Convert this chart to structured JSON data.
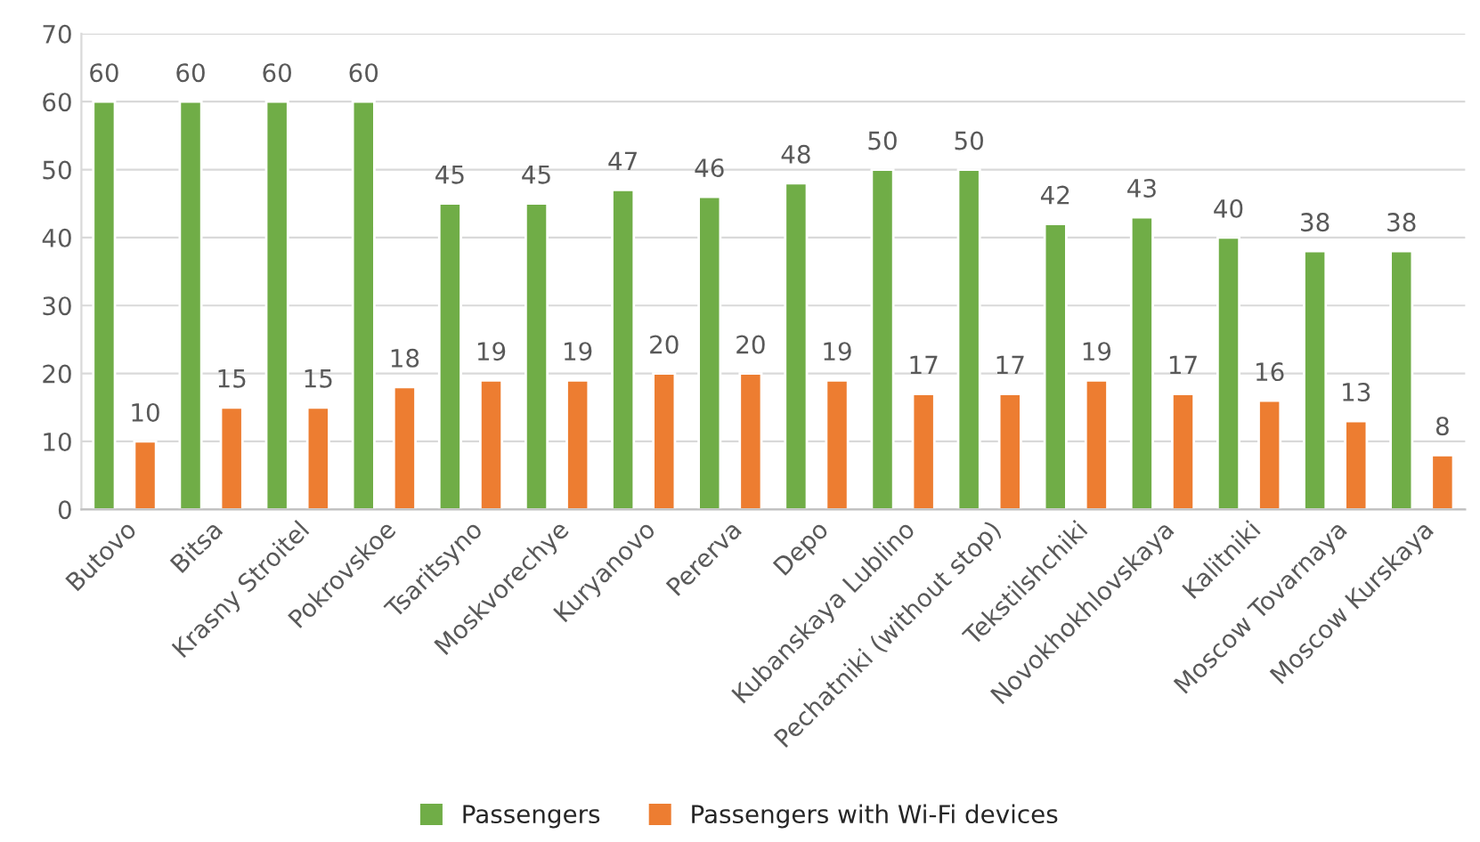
{
  "chart_data": {
    "type": "bar",
    "categories": [
      "Butovo",
      "Bitsa",
      "Krasny Stroitel",
      "Pokrovskoe",
      "Tsaritsyno",
      "Moskvorechye",
      "Kuryanovo",
      "Pererva",
      "Depo",
      "Kubanskaya Lublino",
      "Pechatniki (without stop)",
      "Tekstilshchiki",
      "Novokhokhlovskaya",
      "Kalitniki",
      "Moscow Tovarnaya",
      "Moscow Kurskaya"
    ],
    "series": [
      {
        "name": "Passengers",
        "color": "#70ad47",
        "values": [
          60,
          60,
          60,
          60,
          45,
          45,
          47,
          46,
          48,
          50,
          50,
          42,
          43,
          40,
          38,
          38
        ]
      },
      {
        "name": "Passengers with Wi-Fi devices",
        "color": "#ed7d31",
        "values": [
          10,
          15,
          15,
          18,
          19,
          19,
          20,
          20,
          19,
          17,
          17,
          19,
          17,
          16,
          13,
          8
        ]
      }
    ],
    "ylim": [
      0,
      70
    ],
    "yticks": [
      0,
      10,
      20,
      30,
      40,
      50,
      60,
      70
    ],
    "grid": "y",
    "legend": "bottom",
    "data_labels": true
  }
}
